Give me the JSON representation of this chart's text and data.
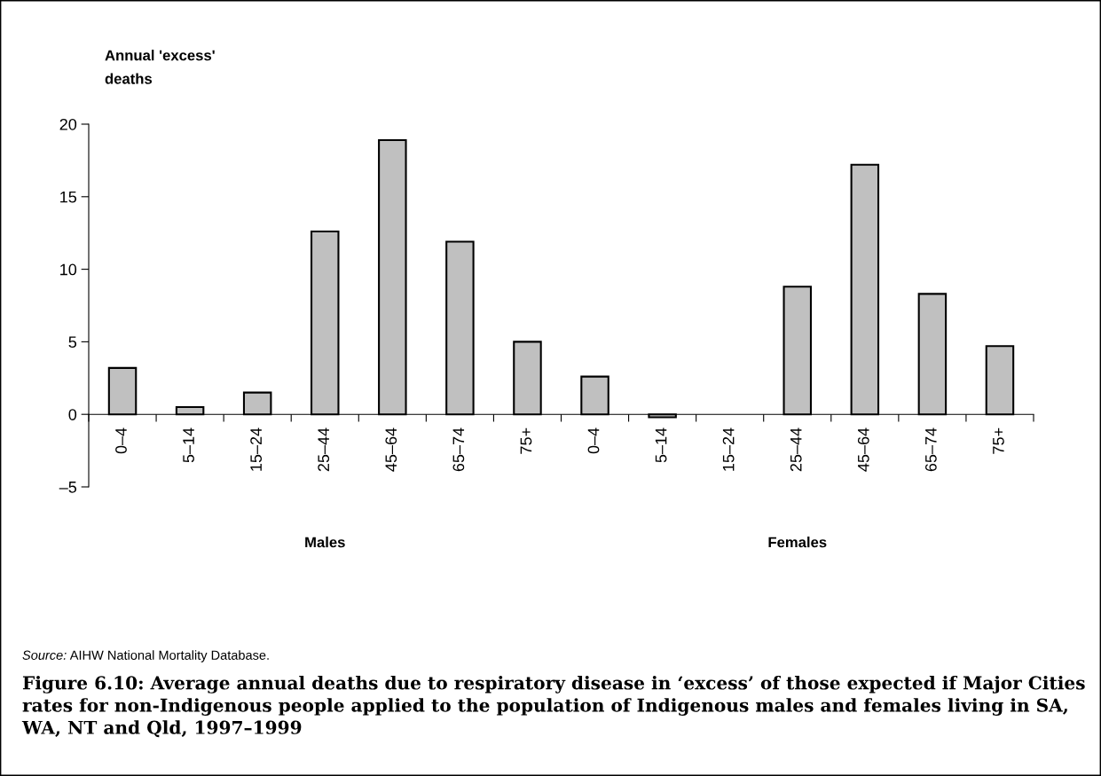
{
  "chart_data": {
    "type": "bar",
    "title": "Figure 6.10: Average annual deaths due to respiratory disease in ‘excess’ of those expected if Major Cities rates for non-Indigenous people applied to the population of Indigenous males and females living in SA, WA, NT and Qld, 1997–1999",
    "ylabel": "Annual 'excess'\ndeaths",
    "annotations": [
      "Males",
      "Females",
      "Source: AIHW National Mortality Database."
    ],
    "categories": [
      "0–4",
      "5–14",
      "15–24",
      "25–44",
      "45–64",
      "65–74",
      "75+",
      "0–4",
      "5–14",
      "15–24",
      "25–44",
      "45–64",
      "65–74",
      "75+"
    ],
    "values": [
      3.2,
      0.5,
      1.5,
      12.6,
      18.9,
      11.9,
      5.0,
      2.6,
      -0.2,
      null,
      8.8,
      17.2,
      8.3,
      4.7
    ],
    "color": "#c0c0c0",
    "ylim": [
      -5,
      20
    ],
    "yticks": [
      {
        "value": -5,
        "label": "–5"
      },
      0,
      5,
      10,
      15,
      20
    ],
    "grid": false,
    "legend": false
  }
}
